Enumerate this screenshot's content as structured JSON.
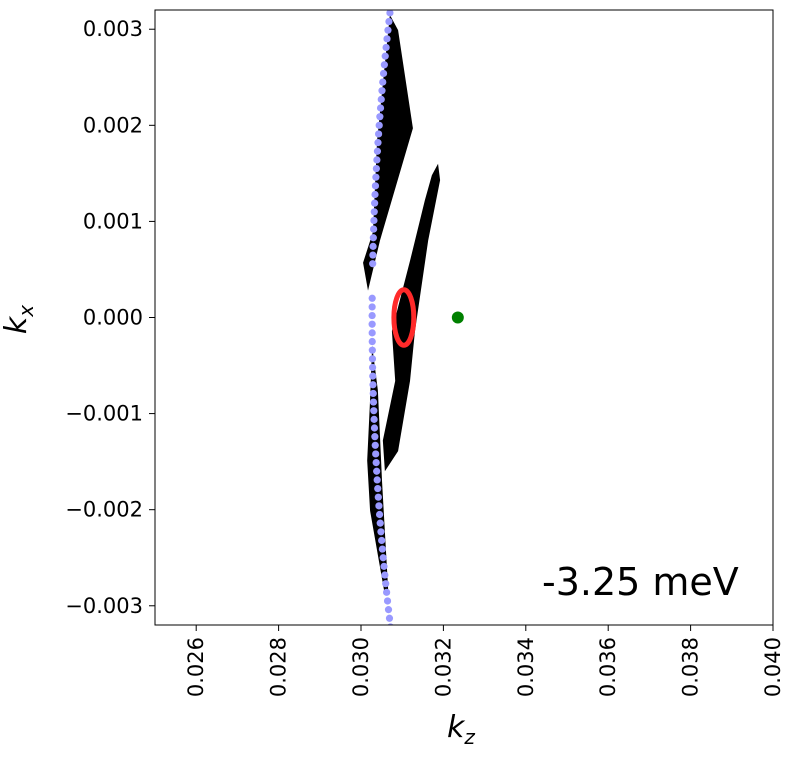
{
  "chart_data": {
    "type": "scatter",
    "title": "",
    "xlabel": "k_z",
    "ylabel": "k_x",
    "xlim": [
      0.025,
      0.04
    ],
    "ylim": [
      -0.0032,
      0.0032
    ],
    "xticks": [
      "0.026",
      "0.028",
      "0.030",
      "0.032",
      "0.034",
      "0.036",
      "0.038",
      "0.040"
    ],
    "xtick_values": [
      0.026,
      0.028,
      0.03,
      0.032,
      0.034,
      0.036,
      0.038,
      0.04
    ],
    "yticks": [
      "−0.003",
      "−0.002",
      "−0.001",
      "0.000",
      "0.001",
      "0.002",
      "0.003"
    ],
    "ytick_values": [
      -0.003,
      -0.002,
      -0.001,
      0.0,
      0.001,
      0.002,
      0.003
    ],
    "annotation": "-3.25 meV",
    "grid": false,
    "colors": {
      "curve": "#9999ff",
      "ellipse": "#ff2a2a",
      "point": "#008000",
      "arrows": "#000000"
    },
    "curve": {
      "description_formula": "kz = kz0 + a*kx^2",
      "kz0": 0.03027,
      "a": 43
    },
    "ellipse": {
      "center": [
        0.03104,
        0.0
      ],
      "semi_kz": 0.00029,
      "semi_kx": 0.00031
    },
    "point": [
      0.03235,
      0.0
    ],
    "quiver_regions": [
      [
        [
          0.0307,
          0.00315
        ],
        [
          0.0309,
          0.00299
        ],
        [
          0.03126,
          0.00197
        ],
        [
          0.03046,
          0.0008
        ],
        [
          0.03017,
          0.00028
        ],
        [
          0.03005,
          0.00057
        ],
        [
          0.03029,
          0.00089
        ],
        [
          0.03039,
          0.00184
        ]
      ],
      [
        [
          0.03187,
          0.0016
        ],
        [
          0.03192,
          0.00143
        ],
        [
          0.03163,
          0.0008
        ],
        [
          0.03131,
          -0.00014
        ],
        [
          0.03119,
          -0.00066
        ],
        [
          0.0309,
          -0.00139
        ],
        [
          0.03058,
          -0.0016
        ],
        [
          0.03053,
          -0.00128
        ],
        [
          0.03083,
          -0.00066
        ],
        [
          0.03075,
          -0.00014
        ],
        [
          0.03119,
          0.00059
        ],
        [
          0.03155,
          0.00122
        ],
        [
          0.03172,
          0.00148
        ]
      ],
      [
        [
          0.03027,
          -0.00029
        ],
        [
          0.03041,
          -0.00076
        ],
        [
          0.03051,
          -0.0017
        ],
        [
          0.03066,
          -0.00284
        ],
        [
          0.03056,
          -0.00284
        ],
        [
          0.03022,
          -0.00201
        ],
        [
          0.03015,
          -0.00149
        ],
        [
          0.03022,
          -0.00086
        ]
      ]
    ]
  }
}
